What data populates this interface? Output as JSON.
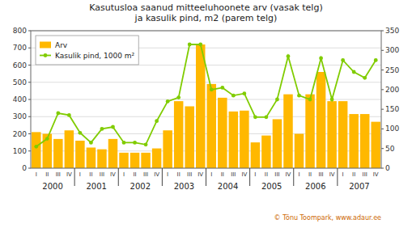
{
  "chart_data": {
    "type": "bar",
    "title": "Kasutusloa saanud mitteeluhoonete arv (vasak telg)\nja kasulik pind, m2 (parem telg)",
    "categories": [
      "I",
      "II",
      "III",
      "IV",
      "I",
      "II",
      "III",
      "IV",
      "I",
      "II",
      "III",
      "IV",
      "I",
      "II",
      "III",
      "IV",
      "I",
      "II",
      "III",
      "IV",
      "I",
      "II",
      "III",
      "IV",
      "I",
      "II",
      "III",
      "IV",
      "I",
      "II",
      "III",
      "IV"
    ],
    "series": [
      {
        "name": "Arv",
        "type": "bar",
        "color": "#FFB800",
        "values": [
          210,
          200,
          170,
          220,
          160,
          120,
          110,
          170,
          90,
          90,
          90,
          115,
          220,
          390,
          360,
          720,
          490,
          410,
          330,
          335,
          150,
          190,
          285,
          430,
          200,
          430,
          560,
          390,
          390,
          315,
          315,
          270
        ]
      },
      {
        "name": "Kasulik pind, 1000 m²",
        "type": "line",
        "color": "#80CC00",
        "axis": "y2",
        "marker": "circle",
        "values": [
          55,
          75,
          140,
          135,
          90,
          65,
          100,
          105,
          65,
          65,
          60,
          120,
          170,
          180,
          315,
          315,
          200,
          205,
          185,
          190,
          130,
          130,
          175,
          285,
          185,
          175,
          280,
          175,
          275,
          245,
          230,
          275
        ]
      }
    ],
    "ylim": [
      0,
      800
    ],
    "yticks": [
      0,
      100,
      200,
      300,
      400,
      500,
      600,
      700,
      800
    ],
    "y2lim": [
      0,
      350
    ],
    "y2ticks": [
      0,
      50,
      100,
      150,
      200,
      250,
      300,
      350
    ],
    "grid": true,
    "legend": "upper left",
    "annotations": {
      "x_groups": [
        "2000",
        "2001",
        "2002",
        "2003",
        "2004",
        "2005",
        "2006",
        "2007"
      ],
      "watermark": "© Tõnu Toompark, www.adaur.ee"
    }
  }
}
